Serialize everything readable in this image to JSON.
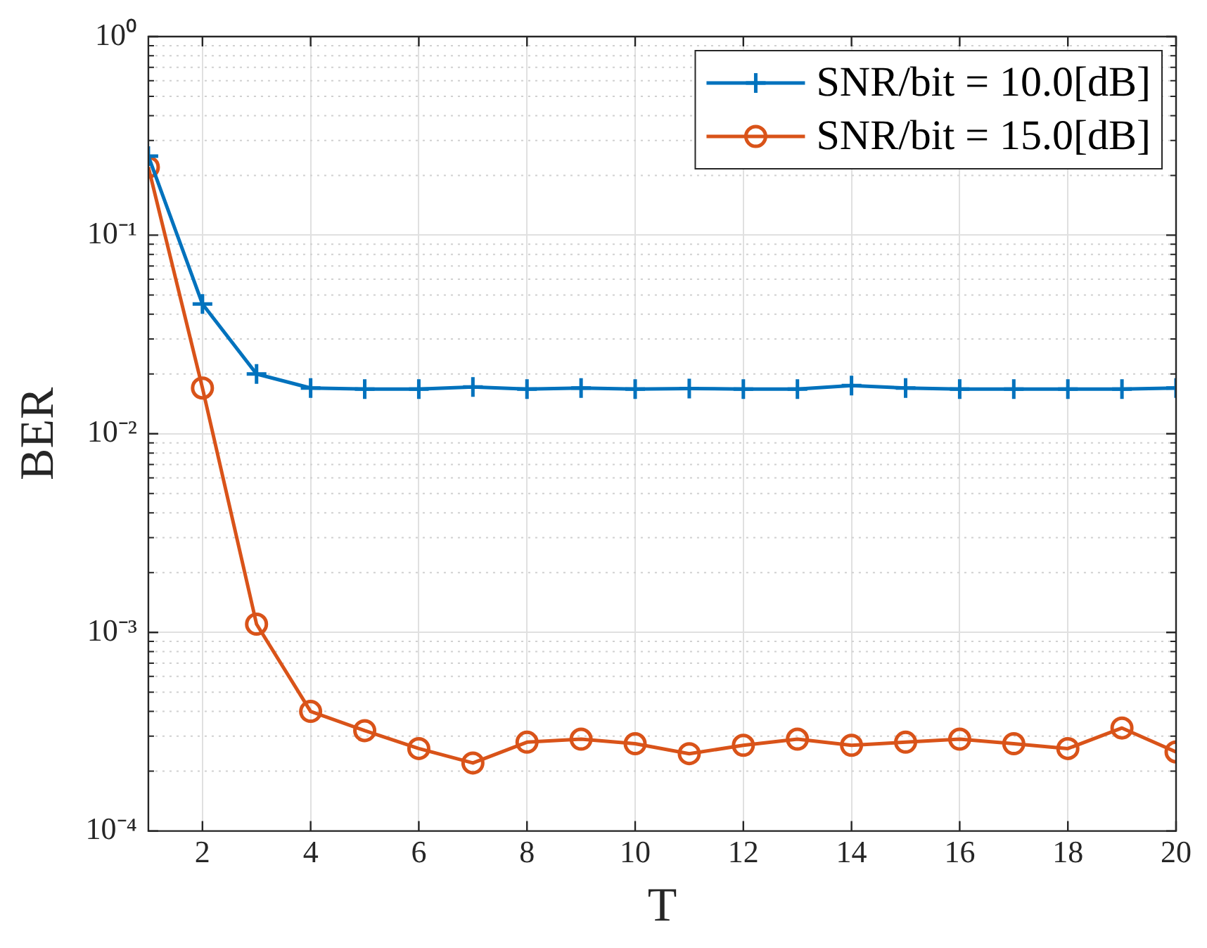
{
  "chart_data": {
    "type": "line",
    "xlabel": "T",
    "ylabel": "BER",
    "x": [
      1,
      2,
      3,
      4,
      5,
      6,
      7,
      8,
      9,
      10,
      11,
      12,
      13,
      14,
      15,
      16,
      17,
      18,
      19,
      20
    ],
    "series": [
      {
        "name": "SNR/bit = 10.0[dB]",
        "color": "#0072bd",
        "marker": "cross",
        "values": [
          0.25,
          0.045,
          0.02,
          0.017,
          0.0168,
          0.0168,
          0.0172,
          0.0168,
          0.017,
          0.0168,
          0.0169,
          0.0168,
          0.0168,
          0.0175,
          0.017,
          0.0168,
          0.0168,
          0.0168,
          0.0168,
          0.017
        ]
      },
      {
        "name": "SNR/bit = 15.0[dB]",
        "color": "#d95319",
        "marker": "circle",
        "values": [
          0.22,
          0.017,
          0.0011,
          0.0004,
          0.00032,
          0.00026,
          0.00022,
          0.00028,
          0.00029,
          0.000275,
          0.000245,
          0.00027,
          0.00029,
          0.00027,
          0.00028,
          0.00029,
          0.000275,
          0.00026,
          0.00033,
          0.00025
        ]
      }
    ],
    "log": "y",
    "xlim": [
      1,
      20
    ],
    "xticks": [
      2,
      4,
      6,
      8,
      10,
      12,
      14,
      16,
      18,
      20
    ],
    "ylim": [
      0.0001,
      1
    ],
    "yticks": [
      {
        "value": 0.0001,
        "label": "10⁻⁴"
      },
      {
        "value": 0.001,
        "label": "10⁻³"
      },
      {
        "value": 0.01,
        "label": "10⁻²"
      },
      {
        "value": 0.1,
        "label": "10⁻¹"
      },
      {
        "value": 1,
        "label": "10⁰"
      }
    ],
    "grid": true,
    "legend": "top right",
    "line_style": "solid"
  }
}
